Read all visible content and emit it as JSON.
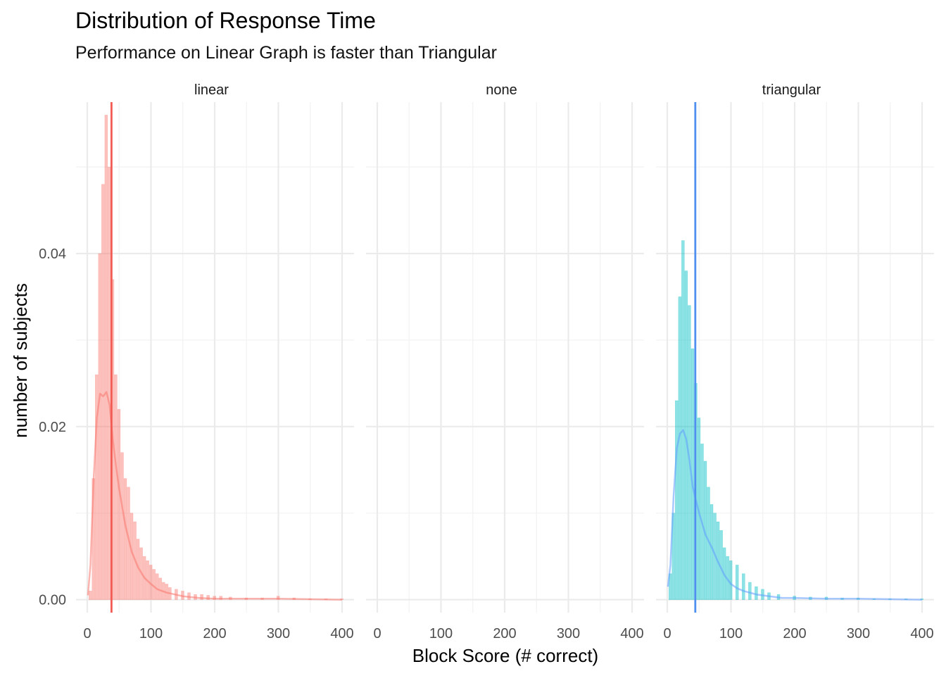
{
  "chart_data": {
    "type": "bar",
    "title": "Distribution of Response Time",
    "subtitle": "Performance on Linear Graph is faster than Triangular",
    "xlabel": "Block Score (# correct)",
    "ylabel": "number of subjects",
    "xlim": [
      0,
      400
    ],
    "ylim": [
      -0.0015,
      0.0575
    ],
    "x_ticks": [
      0,
      100,
      200,
      300,
      400
    ],
    "y_ticks": [
      0.0,
      0.02,
      0.04
    ],
    "y_tick_labels": [
      "0.00",
      "0.02",
      "0.04"
    ],
    "x_tick_labels": [
      "0",
      "100",
      "200",
      "300",
      "400"
    ],
    "grid": true,
    "panels": [
      {
        "name": "linear",
        "hist_color": "#f8766d",
        "mean_line_color": "#f25c54",
        "density_color": "#f8766d",
        "mean": 38,
        "histogram": [
          {
            "x": 5,
            "y": 0.001
          },
          {
            "x": 10,
            "y": 0.014
          },
          {
            "x": 15,
            "y": 0.026
          },
          {
            "x": 20,
            "y": 0.04
          },
          {
            "x": 25,
            "y": 0.048
          },
          {
            "x": 30,
            "y": 0.056
          },
          {
            "x": 35,
            "y": 0.05
          },
          {
            "x": 40,
            "y": 0.037
          },
          {
            "x": 45,
            "y": 0.026
          },
          {
            "x": 50,
            "y": 0.022
          },
          {
            "x": 55,
            "y": 0.017
          },
          {
            "x": 60,
            "y": 0.014
          },
          {
            "x": 65,
            "y": 0.013
          },
          {
            "x": 70,
            "y": 0.01
          },
          {
            "x": 75,
            "y": 0.009
          },
          {
            "x": 80,
            "y": 0.007
          },
          {
            "x": 85,
            "y": 0.006
          },
          {
            "x": 90,
            "y": 0.005
          },
          {
            "x": 95,
            "y": 0.0045
          },
          {
            "x": 100,
            "y": 0.004
          },
          {
            "x": 105,
            "y": 0.0035
          },
          {
            "x": 110,
            "y": 0.003
          },
          {
            "x": 115,
            "y": 0.0025
          },
          {
            "x": 120,
            "y": 0.002
          },
          {
            "x": 125,
            "y": 0.0018
          },
          {
            "x": 130,
            "y": 0.0014
          },
          {
            "x": 140,
            "y": 0.0012
          },
          {
            "x": 150,
            "y": 0.001
          },
          {
            "x": 160,
            "y": 0.0008
          },
          {
            "x": 170,
            "y": 0.0006
          },
          {
            "x": 180,
            "y": 0.0006
          },
          {
            "x": 190,
            "y": 0.0005
          },
          {
            "x": 200,
            "y": 0.0004
          },
          {
            "x": 210,
            "y": 0.0004
          },
          {
            "x": 225,
            "y": 0.0003
          },
          {
            "x": 250,
            "y": 0.0002
          },
          {
            "x": 275,
            "y": 0.0002
          },
          {
            "x": 300,
            "y": 0.0004
          },
          {
            "x": 325,
            "y": 0.0002
          },
          {
            "x": 350,
            "y": 0.0001
          },
          {
            "x": 375,
            "y": 0.0001
          },
          {
            "x": 400,
            "y": 0.0001
          }
        ],
        "density": [
          {
            "x": 1,
            "y": 0.0005
          },
          {
            "x": 5,
            "y": 0.004
          },
          {
            "x": 10,
            "y": 0.014
          },
          {
            "x": 15,
            "y": 0.021
          },
          {
            "x": 20,
            "y": 0.0238
          },
          {
            "x": 25,
            "y": 0.0235
          },
          {
            "x": 30,
            "y": 0.024
          },
          {
            "x": 35,
            "y": 0.0225
          },
          {
            "x": 40,
            "y": 0.0185
          },
          {
            "x": 45,
            "y": 0.0155
          },
          {
            "x": 50,
            "y": 0.0128
          },
          {
            "x": 60,
            "y": 0.0085
          },
          {
            "x": 70,
            "y": 0.0055
          },
          {
            "x": 80,
            "y": 0.0037
          },
          {
            "x": 90,
            "y": 0.0025
          },
          {
            "x": 100,
            "y": 0.0018
          },
          {
            "x": 110,
            "y": 0.0012
          },
          {
            "x": 125,
            "y": 0.0008
          },
          {
            "x": 150,
            "y": 0.0004
          },
          {
            "x": 175,
            "y": 0.0002
          },
          {
            "x": 200,
            "y": 0.0001
          },
          {
            "x": 250,
            "y": 0.0001
          },
          {
            "x": 300,
            "y": 0.0001
          },
          {
            "x": 400,
            "y": 0.0
          }
        ]
      },
      {
        "name": "none",
        "histogram": [],
        "density": []
      },
      {
        "name": "triangular",
        "hist_color": "#00bfc4",
        "mean_line_color": "#4f8fef",
        "density_color": "#619cff",
        "mean": 44,
        "histogram": [
          {
            "x": 5,
            "y": 0.003
          },
          {
            "x": 10,
            "y": 0.01
          },
          {
            "x": 15,
            "y": 0.023
          },
          {
            "x": 20,
            "y": 0.035
          },
          {
            "x": 25,
            "y": 0.0415
          },
          {
            "x": 30,
            "y": 0.038
          },
          {
            "x": 35,
            "y": 0.034
          },
          {
            "x": 40,
            "y": 0.029
          },
          {
            "x": 45,
            "y": 0.025
          },
          {
            "x": 50,
            "y": 0.021
          },
          {
            "x": 55,
            "y": 0.018
          },
          {
            "x": 60,
            "y": 0.016
          },
          {
            "x": 65,
            "y": 0.013
          },
          {
            "x": 70,
            "y": 0.011
          },
          {
            "x": 75,
            "y": 0.01
          },
          {
            "x": 80,
            "y": 0.009
          },
          {
            "x": 85,
            "y": 0.008
          },
          {
            "x": 90,
            "y": 0.006
          },
          {
            "x": 95,
            "y": 0.005
          },
          {
            "x": 100,
            "y": 0.0045
          },
          {
            "x": 110,
            "y": 0.004
          },
          {
            "x": 120,
            "y": 0.003
          },
          {
            "x": 130,
            "y": 0.002
          },
          {
            "x": 140,
            "y": 0.0015
          },
          {
            "x": 150,
            "y": 0.0012
          },
          {
            "x": 160,
            "y": 0.0008
          },
          {
            "x": 175,
            "y": 0.0006
          },
          {
            "x": 200,
            "y": 0.0004
          },
          {
            "x": 225,
            "y": 0.0003
          },
          {
            "x": 250,
            "y": 0.0003
          },
          {
            "x": 275,
            "y": 0.0002
          },
          {
            "x": 300,
            "y": 0.0002
          },
          {
            "x": 325,
            "y": 0.0001
          },
          {
            "x": 350,
            "y": 0.0001
          },
          {
            "x": 375,
            "y": 0.0001
          },
          {
            "x": 400,
            "y": 0.0001
          }
        ],
        "density": [
          {
            "x": 1,
            "y": 0.0015
          },
          {
            "x": 5,
            "y": 0.004
          },
          {
            "x": 10,
            "y": 0.012
          },
          {
            "x": 15,
            "y": 0.0175
          },
          {
            "x": 20,
            "y": 0.0192
          },
          {
            "x": 25,
            "y": 0.0196
          },
          {
            "x": 30,
            "y": 0.0185
          },
          {
            "x": 35,
            "y": 0.016
          },
          {
            "x": 40,
            "y": 0.013
          },
          {
            "x": 45,
            "y": 0.0115
          },
          {
            "x": 50,
            "y": 0.01
          },
          {
            "x": 60,
            "y": 0.0075
          },
          {
            "x": 70,
            "y": 0.006
          },
          {
            "x": 80,
            "y": 0.0043
          },
          {
            "x": 90,
            "y": 0.0028
          },
          {
            "x": 100,
            "y": 0.0018
          },
          {
            "x": 110,
            "y": 0.0013
          },
          {
            "x": 120,
            "y": 0.001
          },
          {
            "x": 140,
            "y": 0.0006
          },
          {
            "x": 160,
            "y": 0.0004
          },
          {
            "x": 180,
            "y": 0.0002
          },
          {
            "x": 200,
            "y": 0.0002
          },
          {
            "x": 250,
            "y": 0.0001
          },
          {
            "x": 300,
            "y": 0.0001
          },
          {
            "x": 400,
            "y": 0.0
          }
        ]
      }
    ]
  }
}
